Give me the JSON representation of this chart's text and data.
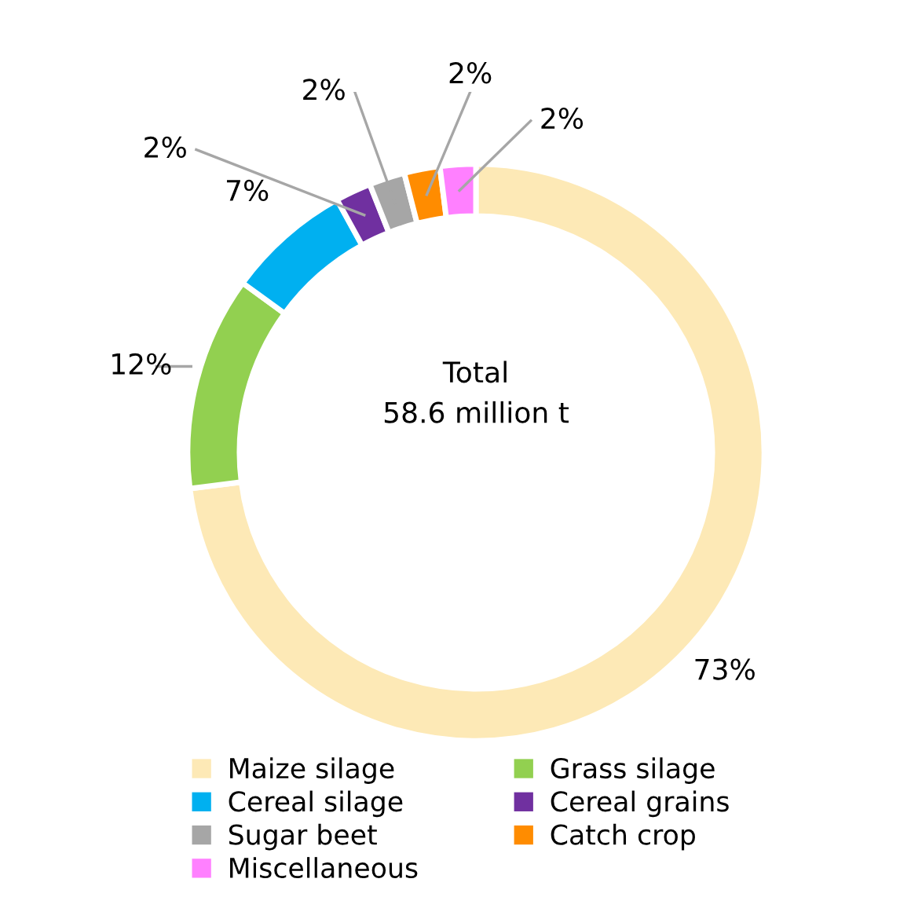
{
  "chart_data": {
    "type": "donut",
    "categories": [
      "Maize silage",
      "Grass silage",
      "Cereal silage",
      "Cereal grains",
      "Sugar beet",
      "Catch crop",
      "Miscellaneous"
    ],
    "values": [
      73,
      12,
      7,
      2,
      2,
      2,
      2
    ],
    "colors": [
      "#fde9b6",
      "#92d050",
      "#00b0f0",
      "#7030a0",
      "#a6a6a6",
      "#ff8c00",
      "#ff80ff"
    ],
    "value_labels": [
      "73%",
      "12%",
      "7%",
      "2%",
      "2%",
      "2%",
      "2%"
    ],
    "annotations": [
      "Total\n58.6 million t"
    ],
    "legend": "bottom"
  }
}
